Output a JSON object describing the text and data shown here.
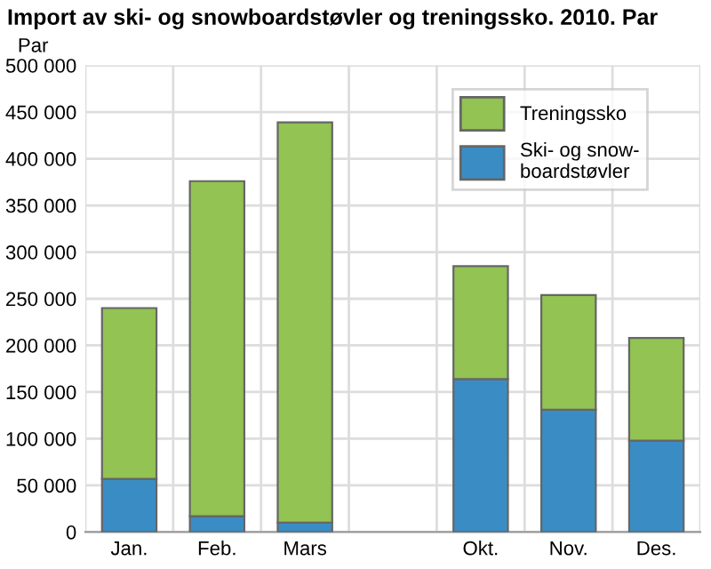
{
  "chart_data": {
    "type": "bar",
    "title": "Import av ski- og snowboardstøvler og treningssko. 2010. Par",
    "ylabel": "Par",
    "categories": [
      "Jan.",
      "Feb.",
      "Mars",
      null,
      "Okt.",
      "Nov.",
      "Des."
    ],
    "stacked": true,
    "series": [
      {
        "name": "Ski- og snow-\nboardstøvler",
        "color": "#3a8dc4",
        "values": [
          57000,
          17000,
          10000,
          null,
          164000,
          131000,
          98000
        ]
      },
      {
        "name": "Treningssko",
        "color": "#92c353",
        "values": [
          183000,
          359000,
          429000,
          null,
          121000,
          123000,
          110000
        ]
      }
    ],
    "ylim": [
      0,
      500000
    ],
    "yticks": [
      {
        "value": 0,
        "label": "0"
      },
      {
        "value": 50000,
        "label": "50 000"
      },
      {
        "value": 100000,
        "label": "100 000"
      },
      {
        "value": 150000,
        "label": "150 000"
      },
      {
        "value": 200000,
        "label": "200 000"
      },
      {
        "value": 250000,
        "label": "250 000"
      },
      {
        "value": 300000,
        "label": "300 000"
      },
      {
        "value": 350000,
        "label": "350 000"
      },
      {
        "value": 400000,
        "label": "400 000"
      },
      {
        "value": 450000,
        "label": "450 000"
      },
      {
        "value": 500000,
        "label": "500 000"
      }
    ],
    "grid": true,
    "legend": "top right"
  }
}
